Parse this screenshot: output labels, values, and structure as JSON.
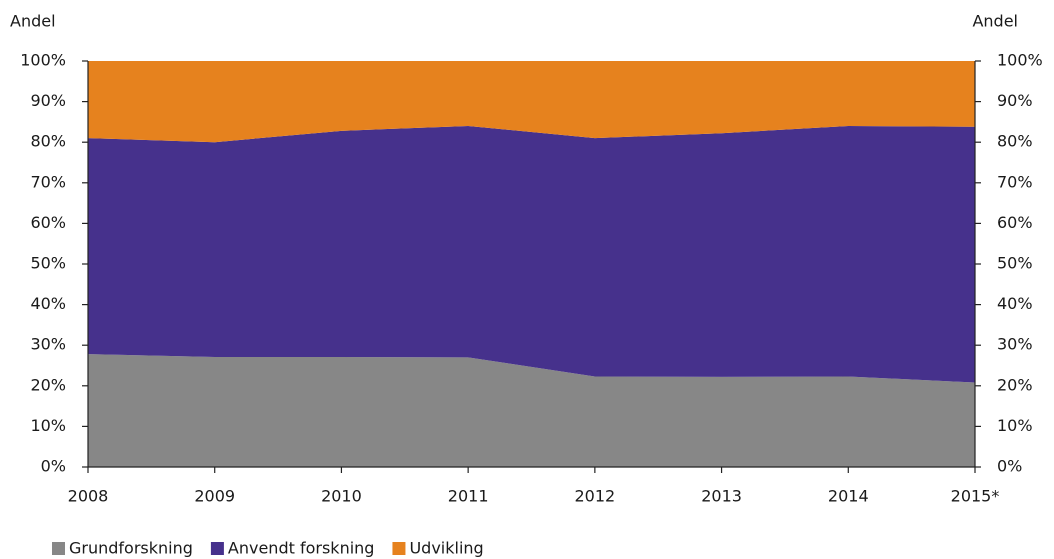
{
  "chart_data": {
    "type": "stacked_area",
    "y_label": "Andel",
    "y2_label": "Andel",
    "categories": [
      "2008",
      "2009",
      "2010",
      "2011",
      "2012",
      "2013",
      "2014",
      "2015*"
    ],
    "series": [
      {
        "name": "Grundforskning",
        "color": "#878787",
        "values": [
          27.8,
          27.1,
          27.1,
          27.0,
          22.3,
          22.2,
          22.3,
          20.8
        ]
      },
      {
        "name": "Anvendt forskning",
        "color": "#46318c",
        "values": [
          53.2,
          52.9,
          55.7,
          57.0,
          58.7,
          60.0,
          61.7,
          63.0
        ]
      },
      {
        "name": "Udvikling",
        "color": "#e6821e",
        "values": [
          19.0,
          20.0,
          17.2,
          16.0,
          19.0,
          17.8,
          16.0,
          16.2
        ]
      }
    ],
    "ylim": [
      0,
      100
    ],
    "yticks": [
      {
        "value": 0,
        "label": "0%"
      },
      {
        "value": 10,
        "label": "10%"
      },
      {
        "value": 20,
        "label": "20%"
      },
      {
        "value": 30,
        "label": "30%"
      },
      {
        "value": 40,
        "label": "40%"
      },
      {
        "value": 50,
        "label": "50%"
      },
      {
        "value": 60,
        "label": "60%"
      },
      {
        "value": 70,
        "label": "70%"
      },
      {
        "value": 80,
        "label": "80%"
      },
      {
        "value": 90,
        "label": "90%"
      },
      {
        "value": 100,
        "label": "100%"
      }
    ],
    "y2lim": [
      0,
      100
    ],
    "y2ticks": [
      {
        "value": 0,
        "label": "0%"
      },
      {
        "value": 10,
        "label": "10%"
      },
      {
        "value": 20,
        "label": "20%"
      },
      {
        "value": 30,
        "label": "30%"
      },
      {
        "value": 40,
        "label": "40%"
      },
      {
        "value": 50,
        "label": "50%"
      },
      {
        "value": 60,
        "label": "60%"
      },
      {
        "value": 70,
        "label": "70%"
      },
      {
        "value": 80,
        "label": "80%"
      },
      {
        "value": 90,
        "label": "90%"
      },
      {
        "value": 100,
        "label": "100%"
      }
    ],
    "legend": "bottom-left"
  }
}
